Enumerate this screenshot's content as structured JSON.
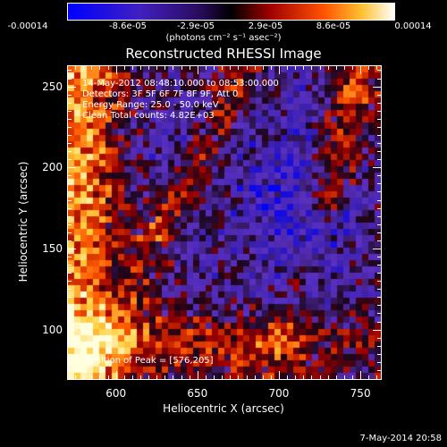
{
  "colorbar": {
    "tick_labels": [
      "-0.00014",
      "-8.6e-05",
      "-2.9e-05",
      "2.9e-05",
      "8.6e-05",
      "0.00014"
    ],
    "unit_label": "(photons cm⁻² s⁻¹ asec⁻²)",
    "range": [
      -0.00014,
      0.00014
    ]
  },
  "chart_data": {
    "type": "heatmap",
    "title": "Reconstructed RHESSI Image",
    "xlabel": "Heliocentric X (arcsec)",
    "ylabel": "Heliocentric Y (arcsec)",
    "xlim": [
      570,
      762
    ],
    "ylim": [
      70,
      263
    ],
    "x_ticks": [
      600,
      650,
      700,
      750
    ],
    "y_ticks": [
      100,
      150,
      200,
      250
    ],
    "annotations": [
      "14-May-2012 08:48:10.000 to 08:53:00.000",
      "Detectors: 3F 5F 6F 7F 8F 9F, Att 0",
      "Energy Range: 25.0 - 50.0 keV",
      "Clean      Total counts: 4.82E+03"
    ],
    "peak_label": "Position of Peak = [576,205]",
    "peak_position": [
      576,
      205
    ],
    "colormap": [
      "#0000ff",
      "#3a1fb0",
      "#5a30c0",
      "#1a0518",
      "#a00000",
      "#ff5a00",
      "#ffd040",
      "#ffffe0"
    ]
  },
  "footer": {
    "date": "7-May-2014 20:58"
  }
}
